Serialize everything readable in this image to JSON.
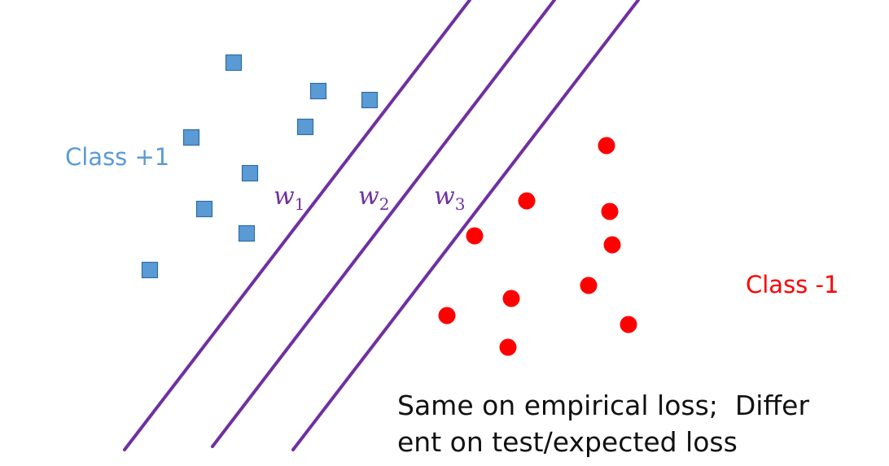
{
  "colors": {
    "class_pos": "#5b9bd5",
    "class_pos_stroke": "#2e6da4",
    "class_neg": "#ff0000",
    "separator": "#7030a0",
    "caption": "#111111"
  },
  "labels": {
    "class_pos": "Class +1",
    "class_neg": "Class -1"
  },
  "separators": [
    {
      "symbol": "w",
      "subscript": "1"
    },
    {
      "symbol": "w",
      "subscript": "2"
    },
    {
      "symbol": "w",
      "subscript": "3"
    }
  ],
  "caption": {
    "line1": "Same on empirical loss;  Differ",
    "line2": "ent on test/expected loss"
  }
}
